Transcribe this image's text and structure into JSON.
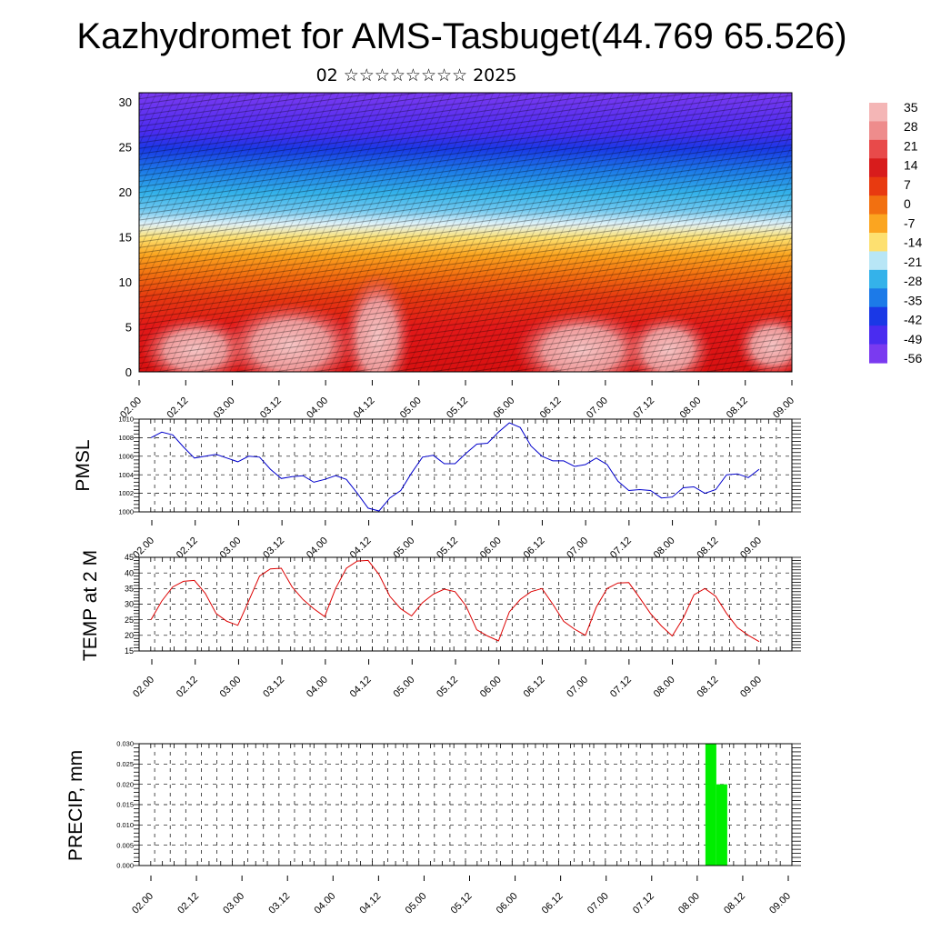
{
  "title": "Kazhydromet for AMS-Tasbuget(44.769 65.526)",
  "subtitle": "02 ☆☆☆☆☆☆☆☆ 2025",
  "chart_data": [
    {
      "type": "heatmap",
      "ylim": [
        0,
        31
      ],
      "yticks": [
        "0",
        "5",
        "10",
        "15",
        "20",
        "25",
        "30"
      ],
      "xticks": [
        "02.00",
        "02.12",
        "03.00",
        "03.12",
        "04.00",
        "04.12",
        "05.00",
        "05.12",
        "06.00",
        "06.12",
        "07.00",
        "07.12",
        "08.00",
        "08.12",
        "09.00"
      ],
      "colorbar": {
        "labels": [
          "35",
          "28",
          "21",
          "14",
          "7",
          "0",
          "-7",
          "-14",
          "-21",
          "-28",
          "-35",
          "-42",
          "-49",
          "-56"
        ],
        "colors": [
          "#f4b6b6",
          "#ee8c8c",
          "#e84a4a",
          "#d81c1c",
          "#e83a10",
          "#f27010",
          "#fba520",
          "#fde070",
          "#b8e6f6",
          "#34b2ea",
          "#1c7ae8",
          "#1a38e6",
          "#4a2cf0",
          "#7a3af0"
        ]
      },
      "grid": false
    },
    {
      "type": "line",
      "ylabel": "PMSL",
      "ylim": [
        1000,
        1010
      ],
      "yticks": [
        "1000",
        "1002",
        "1004",
        "1006",
        "1008",
        "1010"
      ],
      "xticks": [
        "02.00",
        "02.12",
        "03.00",
        "03.12",
        "04.00",
        "04.12",
        "05.00",
        "05.12",
        "06.00",
        "06.12",
        "07.00",
        "07.12",
        "08.00",
        "08.12",
        "09.00"
      ],
      "grid": true,
      "color": "#0000cc",
      "values": [
        1008.0,
        1008.6,
        1008.3,
        1007.0,
        1005.8,
        1006.0,
        1006.2,
        1005.8,
        1005.4,
        1006.0,
        1005.9,
        1004.6,
        1003.6,
        1003.8,
        1003.9,
        1003.2,
        1003.5,
        1003.9,
        1003.5,
        1002.0,
        1000.4,
        1000.1,
        1001.5,
        1002.3,
        1004.2,
        1005.9,
        1006.1,
        1005.2,
        1005.2,
        1006.3,
        1007.3,
        1007.4,
        1008.6,
        1009.6,
        1009.1,
        1007.1,
        1006.0,
        1005.5,
        1005.5,
        1004.9,
        1005.1,
        1005.8,
        1005.1,
        1003.3,
        1002.3,
        1002.4,
        1002.3,
        1001.5,
        1001.6,
        1002.6,
        1002.7,
        1002.0,
        1002.4,
        1004.0,
        1004.1,
        1003.7,
        1004.6
      ]
    },
    {
      "type": "line",
      "ylabel": "TEMP at 2 M",
      "ylim": [
        15,
        45
      ],
      "yticks": [
        "15",
        "20",
        "25",
        "30",
        "35",
        "40",
        "45"
      ],
      "xticks": [
        "02.00",
        "02.12",
        "03.00",
        "03.12",
        "04.00",
        "04.12",
        "05.00",
        "05.12",
        "06.00",
        "06.12",
        "07.00",
        "07.12",
        "08.00",
        "08.12",
        "09.00"
      ],
      "grid": true,
      "color": "#dd0000",
      "values": [
        25.0,
        31.0,
        35.5,
        37.3,
        37.6,
        33.5,
        27.0,
        24.5,
        23.2,
        31.0,
        39.0,
        41.3,
        41.5,
        35.5,
        31.5,
        28.5,
        26.0,
        35.0,
        41.5,
        43.8,
        44.0,
        39.5,
        32.5,
        28.5,
        26.2,
        30.5,
        33.2,
        34.8,
        34.0,
        29.5,
        21.8,
        19.8,
        18.2,
        27.5,
        31.5,
        34.0,
        35.0,
        30.0,
        24.5,
        22.0,
        20.0,
        29.0,
        35.0,
        36.8,
        36.9,
        32.0,
        27.0,
        23.0,
        19.8,
        25.5,
        33.0,
        35.0,
        32.5,
        27.0,
        22.5,
        20.0,
        18.0
      ]
    },
    {
      "type": "bar",
      "ylabel": "PRECIP, mm",
      "ylim": [
        0,
        0.03
      ],
      "yticks": [
        "0.000",
        "0.005",
        "0.010",
        "0.015",
        "0.020",
        "0.025",
        "0.030"
      ],
      "xticks": [
        "02.00",
        "02.12",
        "03.00",
        "03.12",
        "04.00",
        "04.12",
        "05.00",
        "05.12",
        "06.00",
        "06.12",
        "07.00",
        "07.12",
        "08.00",
        "08.12",
        "09.00"
      ],
      "grid": true,
      "color": "#00ee00",
      "bars": [
        {
          "x": 8.15,
          "value": 0.03
        },
        {
          "x": 8.27,
          "value": 0.02
        }
      ]
    }
  ]
}
